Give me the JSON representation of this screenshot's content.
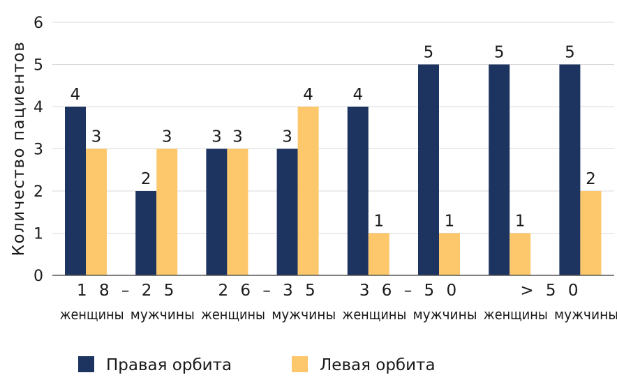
{
  "chart_data": {
    "type": "bar",
    "ylabel": "Количество пациентов",
    "ylim": [
      0,
      6
    ],
    "yticks": [
      "0",
      "1",
      "2",
      "3",
      "4",
      "5",
      "6"
    ],
    "grid": true,
    "legend_position": "bottom",
    "groups": [
      {
        "label": "1 8 – 2 5",
        "subcategories": [
          "женщины",
          "мужчины"
        ]
      },
      {
        "label": "2 6 – 3 5",
        "subcategories": [
          "женщины",
          "мужчины"
        ]
      },
      {
        "label": "3 6 – 5 0",
        "subcategories": [
          "женщины",
          "мужчины"
        ]
      },
      {
        "label": "> 5 0",
        "subcategories": [
          "женщины",
          "мужчины"
        ]
      }
    ],
    "series": [
      {
        "name": "Правая орбита",
        "color": "#1d3461",
        "values": [
          4,
          2,
          3,
          3,
          4,
          5,
          5,
          5
        ]
      },
      {
        "name": "Левая орбита",
        "color": "#fdc76c",
        "values": [
          3,
          3,
          3,
          4,
          1,
          1,
          1,
          2
        ]
      }
    ]
  }
}
